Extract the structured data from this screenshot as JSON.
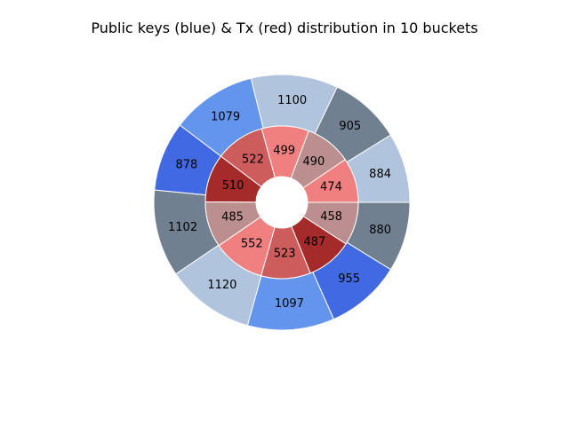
{
  "chart_data": {
    "type": "pie",
    "title": "Public keys (blue) & Tx (red) distribution in 10 buckets",
    "subtype": "nested-donut",
    "start_angle_deg": 0,
    "direction": "counterclockwise",
    "series": [
      {
        "ring": "outer",
        "values": [
          884,
          905,
          1100,
          1079,
          878,
          1102,
          1120,
          1097,
          955,
          880
        ],
        "colors": [
          "#B0C4DE",
          "#708090",
          "#B0C4DE",
          "#6495ED",
          "#4169E1",
          "#708090",
          "#B0C4DE",
          "#6495ED",
          "#4169E1",
          "#708090"
        ]
      },
      {
        "ring": "inner",
        "values": [
          474,
          490,
          499,
          522,
          510,
          485,
          552,
          523,
          487,
          458
        ],
        "colors": [
          "#F08080",
          "#BC8F8F",
          "#F08080",
          "#CD5C5C",
          "#A52A2A",
          "#BC8F8F",
          "#F08080",
          "#CD5C5C",
          "#A52A2A",
          "#BC8F8F"
        ]
      }
    ]
  }
}
